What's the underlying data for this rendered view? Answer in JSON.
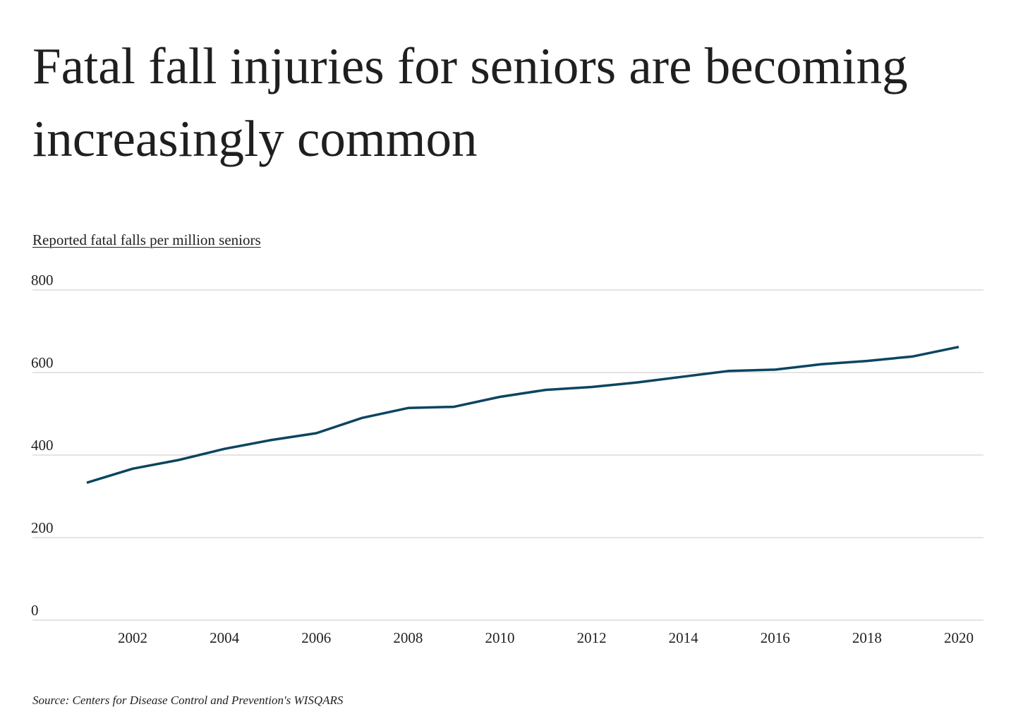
{
  "title": "Fatal fall injuries for seniors are becoming increasingly common",
  "subtitle": "Reported fatal falls per million seniors",
  "source": "Source: Centers for Disease Control and Prevention's WISQARS",
  "chart_data": {
    "type": "line",
    "title": "Fatal fall injuries for seniors are becoming increasingly common",
    "ylabel": "Reported fatal falls per million seniors",
    "xlabel": "",
    "ylim": [
      0,
      800
    ],
    "yticks": [
      0,
      200,
      400,
      600,
      800
    ],
    "xlim": [
      2000,
      2020.5
    ],
    "xticks": [
      2002,
      2004,
      2006,
      2008,
      2010,
      2012,
      2014,
      2016,
      2018,
      2020
    ],
    "grid": "horizontal",
    "line_color": "#0c4560",
    "gridline_color": "#c8c8c8",
    "series": [
      {
        "x": [
          2001,
          2002,
          2003,
          2004,
          2005,
          2006,
          2007,
          2008,
          2009,
          2010,
          2011,
          2012,
          2013,
          2014,
          2015,
          2016,
          2017,
          2018,
          2019,
          2020
        ],
        "values": [
          333,
          367,
          388,
          415,
          436,
          453,
          490,
          514,
          517,
          541,
          558,
          565,
          576,
          590,
          604,
          607,
          620,
          628,
          639,
          662
        ]
      }
    ]
  }
}
